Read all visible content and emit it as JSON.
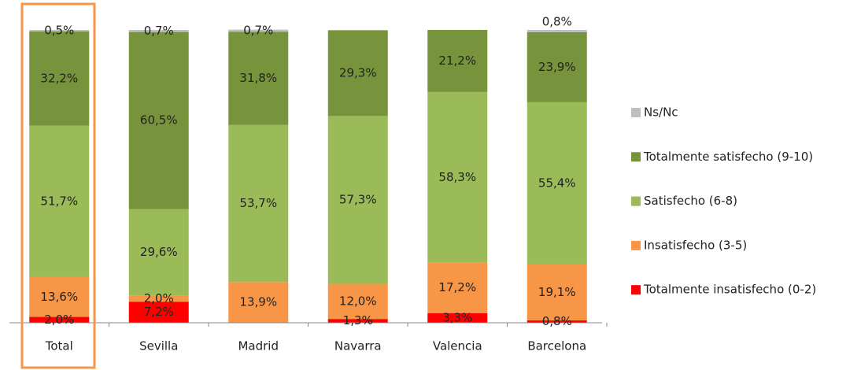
{
  "chart_data": {
    "type": "stacked-bar",
    "categories": [
      "Total",
      "Sevilla",
      "Madrid",
      "Navarra",
      "Valencia",
      "Barcelona"
    ],
    "series": [
      {
        "name": "Totalmente insatisfecho (0-2)",
        "color": "#ff0000",
        "values": [
          2.0,
          7.2,
          null,
          1.3,
          3.3,
          0.8
        ],
        "value_labels": [
          "2,0%",
          "7,2%",
          null,
          "1,3%",
          "3,3%",
          "0,8%"
        ]
      },
      {
        "name": "Insatisfecho (3-5)",
        "color": "#f79646",
        "values": [
          13.6,
          2.0,
          13.9,
          12.0,
          17.2,
          19.1
        ],
        "value_labels": [
          "13,6%",
          "2,0%",
          "13,9%",
          "12,0%",
          "17,2%",
          "19,1%"
        ]
      },
      {
        "name": "Satisfecho (6-8)",
        "color": "#9bbb59",
        "values": [
          51.7,
          29.6,
          53.7,
          57.3,
          58.3,
          55.4
        ],
        "value_labels": [
          "51,7%",
          "29,6%",
          "53,7%",
          "57,3%",
          "58,3%",
          "55,4%"
        ]
      },
      {
        "name": "Totalmente satisfecho (9-10)",
        "color": "#77933c",
        "values": [
          32.2,
          60.5,
          31.8,
          29.3,
          21.2,
          23.9
        ],
        "value_labels": [
          "32,2%",
          "60,5%",
          "31,8%",
          "29,3%",
          "21,2%",
          "23,9%"
        ]
      },
      {
        "name": "Ns/Nc",
        "color": "#bfbfbf",
        "values": [
          0.5,
          0.7,
          0.7,
          null,
          null,
          0.8
        ],
        "value_labels": [
          "0,5%",
          "0,7%",
          "0,7%",
          null,
          null,
          "0,8%"
        ]
      }
    ],
    "ylim": [
      0,
      100
    ]
  }
}
